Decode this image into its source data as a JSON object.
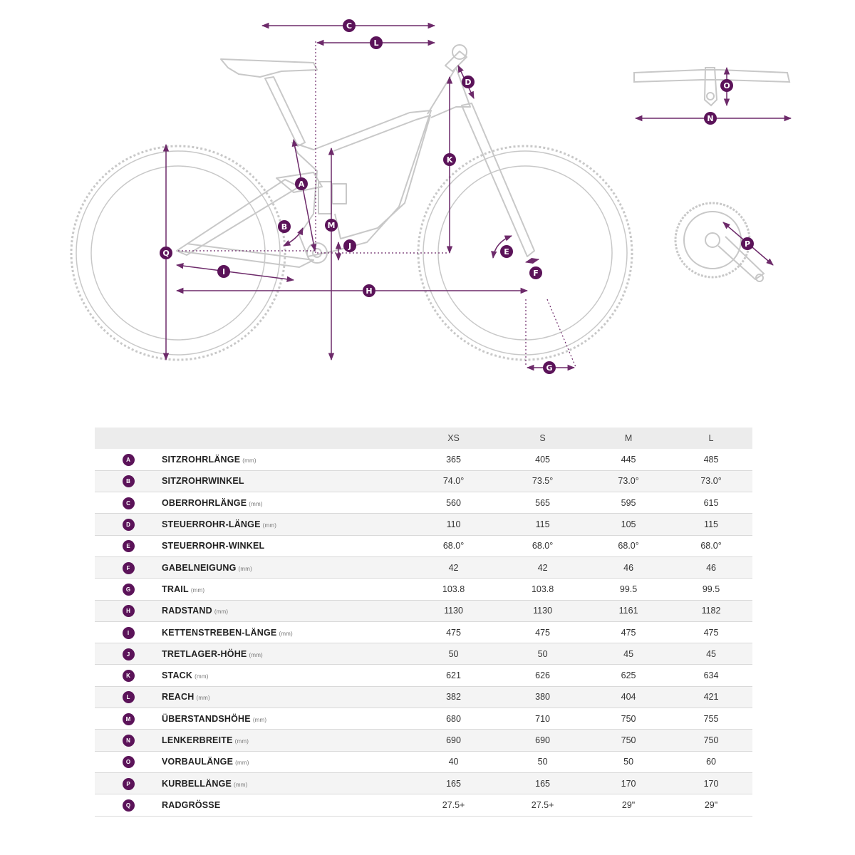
{
  "columns": [
    "XS",
    "S",
    "M",
    "L"
  ],
  "rows": [
    {
      "key": "A",
      "label": "SITZROHRLÄNGE",
      "unit": "(mm)",
      "values": [
        "365",
        "405",
        "445",
        "485"
      ]
    },
    {
      "key": "B",
      "label": "SITZROHRWINKEL",
      "unit": "",
      "values": [
        "74.0°",
        "73.5°",
        "73.0°",
        "73.0°"
      ]
    },
    {
      "key": "C",
      "label": "OBERROHRLÄNGE",
      "unit": "(mm)",
      "values": [
        "560",
        "565",
        "595",
        "615"
      ]
    },
    {
      "key": "D",
      "label": "STEUERROHR-LÄNGE",
      "unit": "(mm)",
      "values": [
        "110",
        "115",
        "105",
        "115"
      ]
    },
    {
      "key": "E",
      "label": "STEUERROHR-WINKEL",
      "unit": "",
      "values": [
        "68.0°",
        "68.0°",
        "68.0°",
        "68.0°"
      ]
    },
    {
      "key": "F",
      "label": "GABELNEIGUNG",
      "unit": "(mm)",
      "values": [
        "42",
        "42",
        "46",
        "46"
      ]
    },
    {
      "key": "G",
      "label": "TRAIL",
      "unit": "(mm)",
      "values": [
        "103.8",
        "103.8",
        "99.5",
        "99.5"
      ]
    },
    {
      "key": "H",
      "label": "RADSTAND",
      "unit": "(mm)",
      "values": [
        "1130",
        "1130",
        "1161",
        "1182"
      ]
    },
    {
      "key": "I",
      "label": "KETTENSTREBEN-LÄNGE",
      "unit": "(mm)",
      "values": [
        "475",
        "475",
        "475",
        "475"
      ]
    },
    {
      "key": "J",
      "label": "TRETLAGER-HÖHE",
      "unit": "(mm)",
      "values": [
        "50",
        "50",
        "45",
        "45"
      ]
    },
    {
      "key": "K",
      "label": "STACK",
      "unit": "(mm)",
      "values": [
        "621",
        "626",
        "625",
        "634"
      ]
    },
    {
      "key": "L",
      "label": "REACH",
      "unit": "(mm)",
      "values": [
        "382",
        "380",
        "404",
        "421"
      ]
    },
    {
      "key": "M",
      "label": "ÜBERSTANDSHÖHE",
      "unit": "(mm)",
      "values": [
        "680",
        "710",
        "750",
        "755"
      ]
    },
    {
      "key": "N",
      "label": "LENKERBREITE",
      "unit": "(mm)",
      "values": [
        "690",
        "690",
        "750",
        "750"
      ]
    },
    {
      "key": "O",
      "label": "VORBAULÄNGE",
      "unit": "(mm)",
      "values": [
        "40",
        "50",
        "50",
        "60"
      ]
    },
    {
      "key": "P",
      "label": "KURBELLÄNGE",
      "unit": "(mm)",
      "values": [
        "165",
        "165",
        "170",
        "170"
      ]
    },
    {
      "key": "Q",
      "label": "RADGRÖSSE",
      "unit": "",
      "values": [
        "27.5+",
        "27.5+",
        "29\"",
        "29\""
      ]
    }
  ],
  "colors": {
    "accent": "#5b1359",
    "line": "#6d2a6a",
    "frame": "#c8c8c8"
  }
}
